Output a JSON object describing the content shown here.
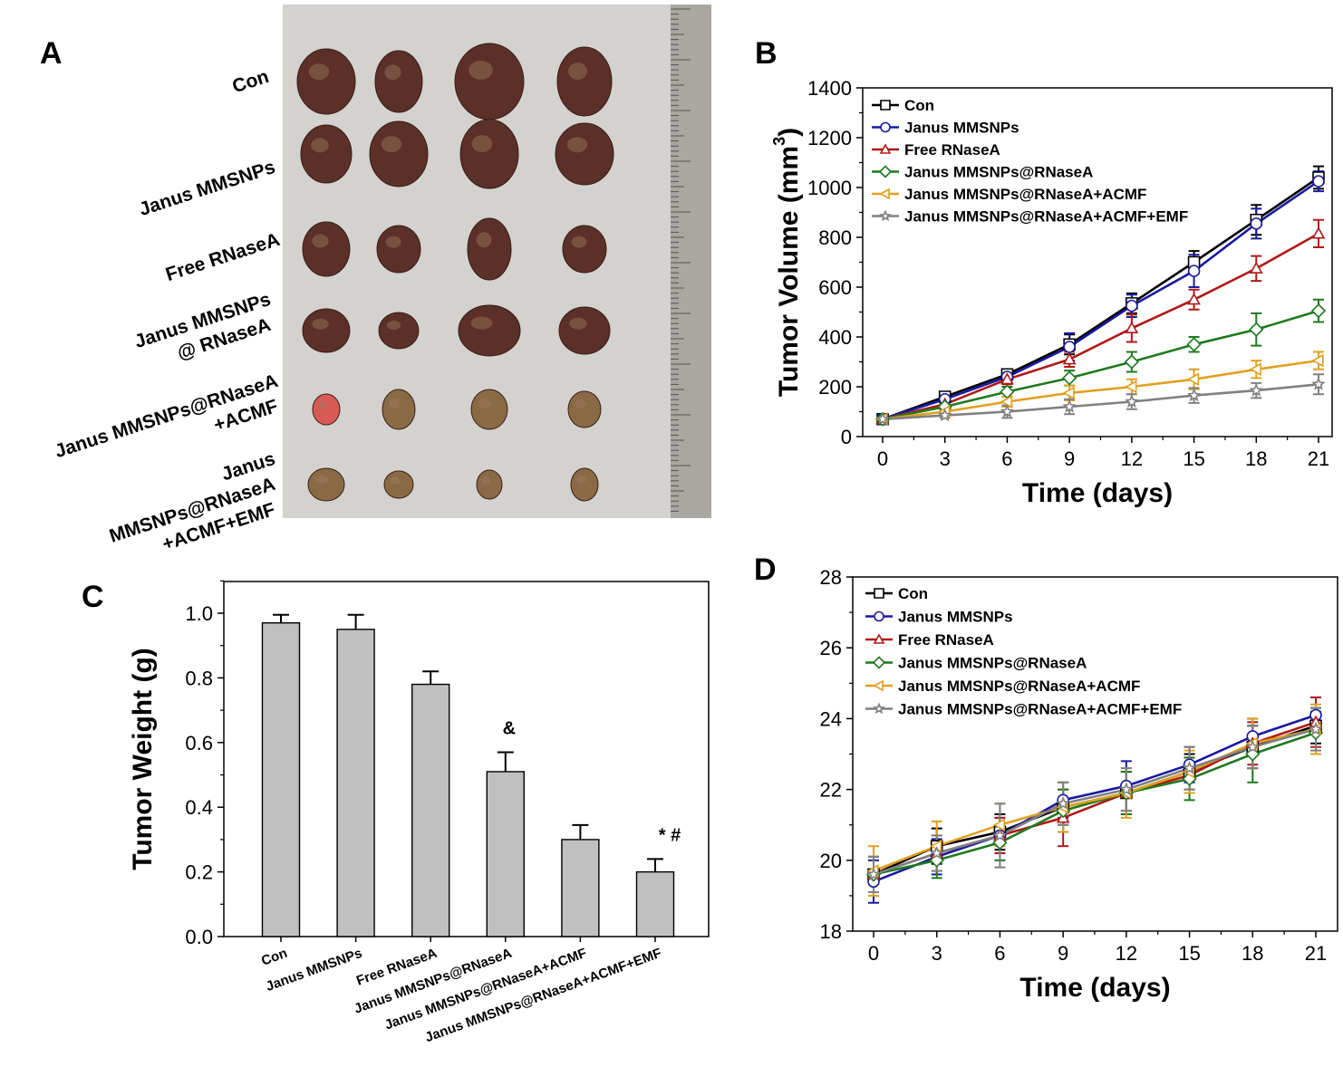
{
  "panel_labels": {
    "a": "A",
    "b": "B",
    "c": "C",
    "d": "D"
  },
  "photo_panel": {
    "row_labels": [
      [
        "Con"
      ],
      [
        "Janus MMSNPs"
      ],
      [
        "Free RNaseA"
      ],
      [
        "Janus MMSNPs",
        "@ RNaseA"
      ],
      [
        "Janus MMSNPs@RNaseA",
        "+ACMF"
      ],
      [
        "Janus",
        "MMSNPs@RNaseA",
        "+ACMF+EMF"
      ]
    ]
  },
  "chart_data": [
    {
      "id": "B",
      "type": "line",
      "xlabel": "Time (days)",
      "ylabel": "Tumor Volume (mm",
      "ylabel_sup": "3",
      "ylabel_end": ")",
      "x": [
        0,
        3,
        6,
        9,
        12,
        15,
        18,
        21
      ],
      "xticks": [
        "0",
        "3",
        "6",
        "9",
        "12",
        "15",
        "18",
        "21"
      ],
      "ylim": [
        0,
        1400
      ],
      "yticks": [
        "0",
        "200",
        "400",
        "600",
        "800",
        "1000",
        "1200",
        "1400"
      ],
      "legend_position": "top-left",
      "series": [
        {
          "name": "Con",
          "color": "#000000",
          "marker": "square",
          "values": [
            70,
            160,
            250,
            370,
            535,
            700,
            870,
            1040
          ],
          "err": [
            10,
            15,
            15,
            40,
            40,
            45,
            60,
            45
          ]
        },
        {
          "name": "Janus MMSNPs",
          "color": "#1a1aa0",
          "marker": "circle",
          "values": [
            70,
            150,
            240,
            360,
            525,
            665,
            855,
            1025
          ],
          "err": [
            10,
            15,
            20,
            55,
            45,
            65,
            60,
            40
          ]
        },
        {
          "name": "Free RNaseA",
          "color": "#b01818",
          "marker": "triangle",
          "values": [
            70,
            130,
            230,
            310,
            435,
            550,
            675,
            815
          ],
          "err": [
            10,
            15,
            20,
            30,
            55,
            40,
            50,
            55
          ]
        },
        {
          "name": "Janus MMSNPs@RNaseA",
          "color": "#1e7a1e",
          "marker": "diamond",
          "values": [
            70,
            120,
            180,
            235,
            300,
            370,
            430,
            505
          ],
          "err": [
            10,
            15,
            20,
            30,
            40,
            30,
            65,
            45
          ]
        },
        {
          "name": "Janus MMSNPs@RNaseA+ACMF",
          "color": "#e0a020",
          "marker": "left-triangle",
          "values": [
            70,
            100,
            140,
            175,
            200,
            230,
            270,
            305
          ],
          "err": [
            10,
            10,
            20,
            30,
            30,
            40,
            35,
            35
          ]
        },
        {
          "name": "Janus MMSNPs@RNaseA+ACMF+EMF",
          "color": "#808080",
          "marker": "star",
          "values": [
            70,
            85,
            100,
            120,
            140,
            165,
            185,
            210
          ],
          "err": [
            10,
            10,
            25,
            30,
            30,
            30,
            30,
            40
          ]
        }
      ]
    },
    {
      "id": "C",
      "type": "bar",
      "xlabel": "",
      "ylabel": "Tumor Weight (g)",
      "categories": [
        "Con",
        "Janus MMSNPs",
        "Free RNaseA",
        "Janus MMSNPs@RNaseA",
        "Janus MMSNPs@RNaseA+ACMF",
        "Janus MMSNPs@RNaseA+ACMF+EMF"
      ],
      "values": [
        0.97,
        0.95,
        0.78,
        0.51,
        0.3,
        0.2
      ],
      "err": [
        0.025,
        0.045,
        0.04,
        0.06,
        0.045,
        0.04
      ],
      "annotations": [
        "",
        "",
        "",
        "&",
        "",
        "* #"
      ],
      "ylim": [
        0,
        1.1
      ],
      "yticks": [
        "0.0",
        "0.2",
        "0.4",
        "0.6",
        "0.8",
        "1.0"
      ],
      "bar_color": "#c0c0c0"
    },
    {
      "id": "D",
      "type": "line",
      "xlabel": "Time (days)",
      "ylabel": "",
      "x": [
        0,
        3,
        6,
        9,
        12,
        15,
        18,
        21
      ],
      "xticks": [
        "0",
        "3",
        "6",
        "9",
        "12",
        "15",
        "18",
        "21"
      ],
      "ylim": [
        18,
        28
      ],
      "yticks": [
        "18",
        "20",
        "22",
        "24",
        "26",
        "28"
      ],
      "legend_position": "top-left",
      "series": [
        {
          "name": "Con",
          "color": "#000000",
          "marker": "square",
          "values": [
            19.6,
            20.4,
            20.8,
            21.5,
            21.9,
            22.5,
            23.2,
            23.8
          ],
          "err": [
            0.5,
            0.5,
            0.5,
            0.5,
            0.6,
            0.5,
            0.6,
            0.5
          ]
        },
        {
          "name": "Janus MMSNPs",
          "color": "#1a1aa0",
          "marker": "circle",
          "values": [
            19.4,
            20.1,
            20.7,
            21.7,
            22.1,
            22.7,
            23.5,
            24.1
          ],
          "err": [
            0.6,
            0.5,
            0.5,
            0.5,
            0.7,
            0.5,
            0.5,
            0.5
          ]
        },
        {
          "name": "Free RNaseA",
          "color": "#b01818",
          "marker": "triangle",
          "values": [
            19.6,
            20.2,
            20.7,
            21.2,
            21.9,
            22.4,
            23.3,
            23.9
          ],
          "err": [
            0.5,
            0.5,
            0.5,
            0.8,
            0.6,
            0.5,
            0.6,
            0.7
          ]
        },
        {
          "name": "Janus MMSNPs@RNaseA",
          "color": "#1e7a1e",
          "marker": "diamond",
          "values": [
            19.6,
            20.0,
            20.5,
            21.4,
            21.9,
            22.3,
            23.0,
            23.6
          ],
          "err": [
            0.5,
            0.5,
            0.5,
            0.6,
            0.6,
            0.6,
            0.8,
            0.6
          ]
        },
        {
          "name": "Janus MMSNPs@RNaseA+ACMF",
          "color": "#e0a020",
          "marker": "left-triangle",
          "values": [
            19.7,
            20.4,
            21.0,
            21.5,
            21.9,
            22.5,
            23.3,
            23.7
          ],
          "err": [
            0.7,
            0.7,
            0.6,
            0.7,
            0.7,
            0.6,
            0.7,
            0.7
          ]
        },
        {
          "name": "Janus MMSNPs@RNaseA+ACMF+EMF",
          "color": "#808080",
          "marker": "star",
          "values": [
            19.6,
            20.2,
            20.7,
            21.6,
            22.0,
            22.6,
            23.2,
            23.7
          ],
          "err": [
            0.5,
            0.5,
            0.9,
            0.6,
            0.6,
            0.6,
            0.6,
            0.6
          ]
        }
      ]
    }
  ]
}
